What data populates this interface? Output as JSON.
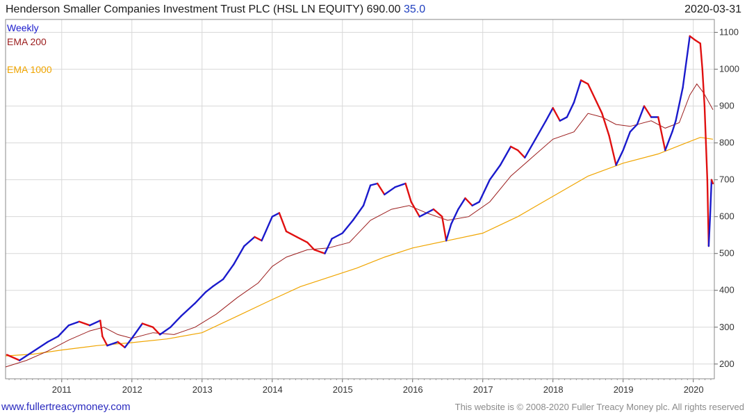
{
  "header": {
    "title_main": "Henderson Smaller Companies Investment Trust PLC (HSL LN EQUITY) 690.00",
    "title_change": "35.0",
    "date": "2020-03-31"
  },
  "legend": {
    "weekly": "Weekly",
    "ema200": "EMA 200",
    "ema1000": "EMA 1000"
  },
  "footer": {
    "site": "www.fullertreacymoney.com",
    "copyright": "This website is © 2008-2020 Fuller Treacy Money plc. All rights reserved"
  },
  "colors": {
    "up": "#1a1acc",
    "down": "#e01010",
    "ema200": "#9b1c1c",
    "ema1000": "#f0a500",
    "grid": "#d8d8d8"
  },
  "chart_data": {
    "type": "line",
    "title": "Henderson Smaller Companies Investment Trust PLC (HSL LN EQUITY) 690.00 35.0",
    "frequency": "Weekly",
    "xlabel": "",
    "ylabel": "",
    "xlim": [
      2010.2,
      2020.3
    ],
    "ylim": [
      160,
      1135
    ],
    "yticks": [
      200,
      300,
      400,
      500,
      600,
      700,
      800,
      900,
      1000,
      1100
    ],
    "xticks": [
      {
        "label": "2011",
        "x": 2011.0
      },
      {
        "label": "2012",
        "x": 2012.0
      },
      {
        "label": "2013",
        "x": 2013.0
      },
      {
        "label": "2014",
        "x": 2014.0
      },
      {
        "label": "2015",
        "x": 2015.0
      },
      {
        "label": "2016",
        "x": 2016.0
      },
      {
        "label": "2017",
        "x": 2017.0
      },
      {
        "label": "2018",
        "x": 2018.0
      },
      {
        "label": "2019",
        "x": 2019.0
      },
      {
        "label": "2020",
        "x": 2020.0
      }
    ],
    "series": [
      {
        "name": "Weekly",
        "points": [
          [
            2010.22,
            225
          ],
          [
            2010.4,
            210
          ],
          [
            2010.6,
            235
          ],
          [
            2010.8,
            260
          ],
          [
            2010.95,
            275
          ],
          [
            2011.1,
            305
          ],
          [
            2011.25,
            315
          ],
          [
            2011.4,
            305
          ],
          [
            2011.55,
            318
          ],
          [
            2011.58,
            275
          ],
          [
            2011.65,
            250
          ],
          [
            2011.8,
            260
          ],
          [
            2011.9,
            245
          ],
          [
            2012.0,
            270
          ],
          [
            2012.15,
            310
          ],
          [
            2012.3,
            300
          ],
          [
            2012.4,
            280
          ],
          [
            2012.55,
            300
          ],
          [
            2012.7,
            330
          ],
          [
            2012.9,
            365
          ],
          [
            2013.05,
            395
          ],
          [
            2013.15,
            410
          ],
          [
            2013.3,
            430
          ],
          [
            2013.45,
            470
          ],
          [
            2013.6,
            520
          ],
          [
            2013.75,
            545
          ],
          [
            2013.85,
            535
          ],
          [
            2014.0,
            600
          ],
          [
            2014.1,
            610
          ],
          [
            2014.2,
            560
          ],
          [
            2014.35,
            545
          ],
          [
            2014.5,
            530
          ],
          [
            2014.6,
            510
          ],
          [
            2014.75,
            500
          ],
          [
            2014.85,
            540
          ],
          [
            2015.0,
            555
          ],
          [
            2015.15,
            590
          ],
          [
            2015.3,
            630
          ],
          [
            2015.4,
            685
          ],
          [
            2015.5,
            690
          ],
          [
            2015.6,
            660
          ],
          [
            2015.75,
            680
          ],
          [
            2015.9,
            690
          ],
          [
            2015.98,
            640
          ],
          [
            2016.1,
            600
          ],
          [
            2016.2,
            610
          ],
          [
            2016.3,
            620
          ],
          [
            2016.42,
            600
          ],
          [
            2016.48,
            535
          ],
          [
            2016.55,
            580
          ],
          [
            2016.65,
            620
          ],
          [
            2016.75,
            650
          ],
          [
            2016.85,
            630
          ],
          [
            2016.95,
            640
          ],
          [
            2017.1,
            700
          ],
          [
            2017.25,
            740
          ],
          [
            2017.4,
            790
          ],
          [
            2017.5,
            780
          ],
          [
            2017.6,
            760
          ],
          [
            2017.75,
            810
          ],
          [
            2017.9,
            860
          ],
          [
            2018.0,
            895
          ],
          [
            2018.1,
            860
          ],
          [
            2018.2,
            870
          ],
          [
            2018.3,
            910
          ],
          [
            2018.4,
            970
          ],
          [
            2018.5,
            960
          ],
          [
            2018.6,
            920
          ],
          [
            2018.7,
            880
          ],
          [
            2018.8,
            820
          ],
          [
            2018.9,
            740
          ],
          [
            2019.0,
            780
          ],
          [
            2019.1,
            830
          ],
          [
            2019.2,
            850
          ],
          [
            2019.3,
            900
          ],
          [
            2019.4,
            870
          ],
          [
            2019.5,
            870
          ],
          [
            2019.6,
            780
          ],
          [
            2019.7,
            830
          ],
          [
            2019.75,
            860
          ],
          [
            2019.85,
            950
          ],
          [
            2019.95,
            1090
          ],
          [
            2020.02,
            1080
          ],
          [
            2020.1,
            1070
          ],
          [
            2020.13,
            1000
          ],
          [
            2020.16,
            900
          ],
          [
            2020.18,
            800
          ],
          [
            2020.2,
            700
          ],
          [
            2020.22,
            520
          ],
          [
            2020.24,
            600
          ],
          [
            2020.26,
            700
          ],
          [
            2020.28,
            690
          ]
        ]
      },
      {
        "name": "EMA 200",
        "points": [
          [
            2010.2,
            192
          ],
          [
            2010.5,
            210
          ],
          [
            2010.8,
            235
          ],
          [
            2011.1,
            265
          ],
          [
            2011.4,
            290
          ],
          [
            2011.6,
            300
          ],
          [
            2011.8,
            280
          ],
          [
            2012.0,
            270
          ],
          [
            2012.3,
            285
          ],
          [
            2012.6,
            280
          ],
          [
            2012.9,
            300
          ],
          [
            2013.2,
            335
          ],
          [
            2013.5,
            380
          ],
          [
            2013.8,
            420
          ],
          [
            2014.0,
            465
          ],
          [
            2014.2,
            490
          ],
          [
            2014.5,
            510
          ],
          [
            2014.8,
            515
          ],
          [
            2015.1,
            530
          ],
          [
            2015.4,
            590
          ],
          [
            2015.7,
            620
          ],
          [
            2015.95,
            630
          ],
          [
            2016.2,
            610
          ],
          [
            2016.5,
            590
          ],
          [
            2016.8,
            600
          ],
          [
            2017.1,
            640
          ],
          [
            2017.4,
            710
          ],
          [
            2017.7,
            760
          ],
          [
            2018.0,
            810
          ],
          [
            2018.3,
            830
          ],
          [
            2018.5,
            880
          ],
          [
            2018.7,
            870
          ],
          [
            2018.9,
            850
          ],
          [
            2019.1,
            845
          ],
          [
            2019.4,
            860
          ],
          [
            2019.6,
            840
          ],
          [
            2019.8,
            855
          ],
          [
            2019.95,
            930
          ],
          [
            2020.05,
            960
          ],
          [
            2020.15,
            935
          ],
          [
            2020.28,
            890
          ]
        ]
      },
      {
        "name": "EMA 1000",
        "points": [
          [
            2010.2,
            222
          ],
          [
            2010.6,
            227
          ],
          [
            2011.0,
            238
          ],
          [
            2011.5,
            250
          ],
          [
            2012.0,
            258
          ],
          [
            2012.5,
            268
          ],
          [
            2013.0,
            285
          ],
          [
            2013.5,
            330
          ],
          [
            2014.0,
            375
          ],
          [
            2014.4,
            410
          ],
          [
            2014.8,
            435
          ],
          [
            2015.2,
            460
          ],
          [
            2015.6,
            490
          ],
          [
            2016.0,
            515
          ],
          [
            2016.5,
            535
          ],
          [
            2017.0,
            555
          ],
          [
            2017.5,
            600
          ],
          [
            2018.0,
            655
          ],
          [
            2018.5,
            710
          ],
          [
            2019.0,
            745
          ],
          [
            2019.5,
            770
          ],
          [
            2019.9,
            800
          ],
          [
            2020.1,
            815
          ],
          [
            2020.28,
            810
          ]
        ]
      }
    ]
  }
}
